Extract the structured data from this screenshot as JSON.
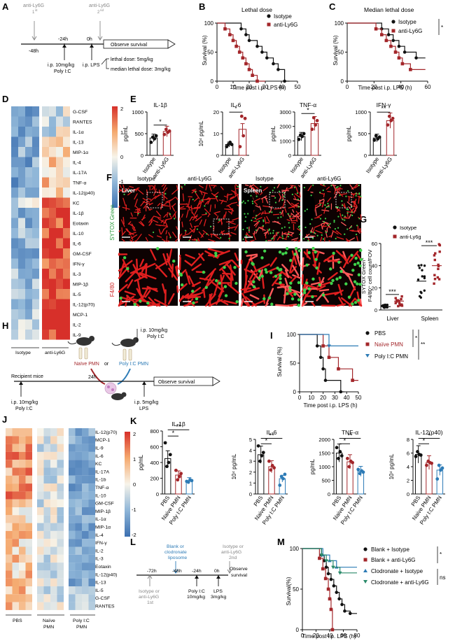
{
  "panels": {
    "A": "A",
    "B": "B",
    "C": "C",
    "D": "D",
    "E": "E",
    "F": "F",
    "G": "G",
    "H": "H",
    "I": "I",
    "J": "J",
    "K": "K",
    "L": "L",
    "M": "M"
  },
  "A": {
    "dose1": "anti-Ly6G",
    "dose1_sup": "1",
    "dose1_sup2": "st",
    "dose2": "anti-Ly6G",
    "dose2_sup": "2",
    "dose2_sup2": "nd",
    "t1": "-48h",
    "t2": "-24h",
    "t3": "0h",
    "observe": "Observe survival",
    "ip1a": "i.p. 10mg/kg",
    "ip1b": "Poly I:C",
    "ip2": "i.p. LPS",
    "lethal": "lethal dose: 5mg/kg",
    "median": "median lethal dose: 3mg/kg"
  },
  "B": {
    "title": "Lethal dose",
    "ylabel": "Survival (%)",
    "xlabel": "Time post i.p. LPS (h)",
    "yticks": [
      "0",
      "50",
      "100"
    ],
    "xticks": [
      "0",
      "10",
      "20",
      "30",
      "40",
      "50"
    ],
    "legend": [
      "Isotype",
      "anti-Ly6G"
    ]
  },
  "C": {
    "title": "Median lethal dose",
    "ylabel": "Survival (%)",
    "xlabel": "Time post i.p. LPS (h)",
    "yticks": [
      "0",
      "50",
      "100"
    ],
    "xticks": [
      "0",
      "20",
      "40",
      "60"
    ],
    "legend": [
      "Isotype",
      "anti-Ly6G"
    ],
    "sig": "*"
  },
  "D": {
    "rows": [
      "G-CSF",
      "RANTES",
      "IL-1α",
      "IL-13",
      "MIP-1α",
      "IL-4",
      "IL-17A",
      "TNF-α",
      "IL-12(p40)",
      "KC",
      "IL-1β",
      "Eotaxin",
      "IL-10",
      "IL-6",
      "GM-CSF",
      "IFN-γ",
      "IL-3",
      "MIP-1β",
      "IL-5",
      "IL-12(p70)",
      "MCP-1",
      "IL-2",
      "IL-9"
    ],
    "groups": [
      "Isotype",
      "anti-Ly6G"
    ],
    "scale": [
      "2",
      "1",
      "0",
      "-1",
      "-2"
    ]
  },
  "E": {
    "charts": [
      {
        "title": "IL-1β",
        "ylabel": "pg/mL",
        "yticks": [
          "0",
          "500",
          "1000"
        ],
        "sig": "*"
      },
      {
        "title": "IL-6",
        "ylabel": "10⁴ pg/mL",
        "yticks": [
          "0",
          "10",
          "20"
        ],
        "sig": "*"
      },
      {
        "title": "TNF-α",
        "ylabel": "pg/mL",
        "yticks": [
          "0",
          "1000",
          "2000",
          "3000"
        ],
        "sig": "*"
      },
      {
        "title": "IFN-γ",
        "ylabel": "pg/mL",
        "yticks": [
          "0",
          "500",
          "1000"
        ],
        "sig": "**"
      }
    ],
    "xcats": [
      "Isotype",
      "anti-Ly6G"
    ]
  },
  "F": {
    "cols": [
      "Isotype",
      "anti-Ly6G",
      "Isotype",
      "anti-Ly6G"
    ],
    "liver": "Liver",
    "spleen": "Spleen",
    "side_top": "SYTOX Green",
    "side_bot": "F4/80"
  },
  "G": {
    "ylabel1": "SYTOX Green⁺",
    "ylabel2": "F4/80⁺ cell count/FOV",
    "yticks": [
      "0",
      "20",
      "40",
      "60"
    ],
    "legend": [
      "Isotype",
      "anti-Ly6g"
    ],
    "groups": [
      "Liver",
      "Spleen"
    ],
    "sig": "***"
  },
  "H": {
    "naive": "Naïve PMN",
    "or": "or",
    "polyic": "Poly I:C PMN",
    "ip_top1": "i.p. 10mg/kg",
    "ip_top2": "Poly I:C",
    "recipient": "Recipient mice",
    "h24": "24h",
    "observe": "Observe survival",
    "ip_bot1": "i.p. 10mg/kg",
    "ip_bot2": "Poly I:C",
    "ip_lps1": "i.p. 5mg/kg",
    "ip_lps2": "LPS"
  },
  "I": {
    "ylabel": "Survival (%)",
    "xlabel": "Time post i.p. LPS (h)",
    "yticks": [
      "0",
      "50",
      "100"
    ],
    "xticks": [
      "0",
      "10",
      "20",
      "30",
      "40",
      "50"
    ],
    "legend": [
      "PBS",
      "Naïve PMN",
      "Poly I:C PMN"
    ],
    "sig1": "*",
    "sig2": "**"
  },
  "J": {
    "rows": [
      "IL-12(p70)",
      "MCP-1",
      "IL-9",
      "IL-6",
      "KC",
      "IL-17A",
      "IL-1b",
      "TNF-α",
      "IL-10",
      "GM-CSF",
      "MIP-1β",
      "IL-1α",
      "MIP-1α",
      "IL-4",
      "IFN-γ",
      "IL-2",
      "IL-3",
      "Eotaxin",
      "IL-12(p40)",
      "IL-13",
      "IL-5",
      "G-CSF",
      "RANTES"
    ],
    "groups": [
      "PBS",
      "Naïve PMN",
      "Poly I:C PMN"
    ],
    "scale": [
      "2",
      "1",
      "0",
      "-1",
      "-2"
    ]
  },
  "K": {
    "charts": [
      {
        "title": "IL-1β",
        "ylabel": "pg/mL",
        "yticks": [
          "0",
          "200",
          "400",
          "600",
          "800"
        ],
        "sig1": "*",
        "sig2": "**"
      },
      {
        "title": "IL-6",
        "ylabel": "10⁴ pg/mL",
        "yticks": [
          "0",
          "1",
          "2",
          "3",
          "4",
          "5"
        ],
        "sig1": "*",
        "sig2": "**"
      },
      {
        "title": "TNF-α",
        "ylabel": "pg/mL",
        "yticks": [
          "0",
          "500",
          "1000",
          "1500",
          "2000"
        ],
        "sig1": "*",
        "sig2": "**"
      },
      {
        "title": "IL-12(p40)",
        "ylabel": "10⁴ pg/mL",
        "yticks": [
          "0",
          "2",
          "4",
          "6",
          "8"
        ],
        "sig1": "*",
        "sig2": "*"
      }
    ],
    "xcats": [
      "PBS",
      "Naive PMN",
      "Poly I:C PMN"
    ]
  },
  "L": {
    "blank1": "Blank or",
    "blank2": "clodronate",
    "blank3": "liposome",
    "iso_top1": "Isotype or",
    "iso_top2": "anti-Ly6G",
    "iso_top3": "2nd",
    "t1": "-72h",
    "t2": "-48h",
    "t3": "-24h",
    "t4": "0h",
    "observe1": "Observe",
    "observe2": "survival",
    "iso_bot1": "Isotype or",
    "iso_bot2": "anti-Ly6G",
    "iso_bot3": "1st",
    "pic1": "Poly I:C",
    "pic2": "10mg/kg",
    "lps1": "LPS",
    "lps2": "3mg/kg"
  },
  "M": {
    "ylabel": "Survival(%)",
    "xlabel": "Time post i.p. LPS (h)",
    "yticks": [
      "0",
      "50",
      "100"
    ],
    "xticks": [
      "0",
      "20",
      "40",
      "60",
      "80"
    ],
    "legend": [
      "Blank + Isotype",
      "Blank + anti-Ly6G",
      "Clodronate + Isotype",
      "Clodronate + anti-Ly6G"
    ],
    "sig": "*",
    "ns": "ns"
  },
  "colors": {
    "black": "#111111",
    "red": "#a3262a",
    "blue": "#2d7bb6",
    "green": "#2a8a6a",
    "heat_hi": "#d7302a",
    "heat_mid": "#f7f4ea",
    "heat_lo": "#3b6fb0"
  }
}
